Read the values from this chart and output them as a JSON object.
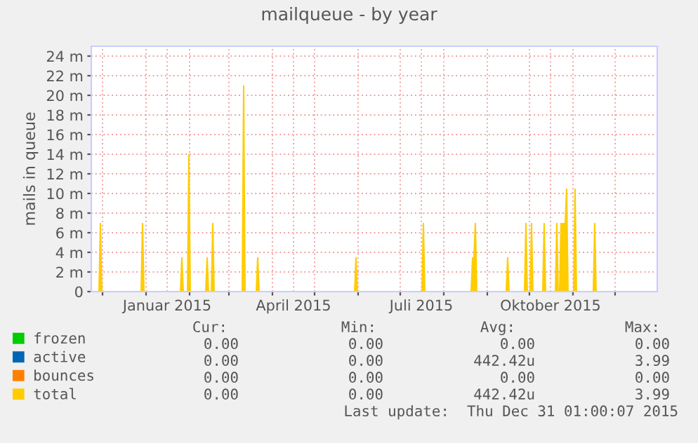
{
  "chart_data": {
    "type": "area",
    "title": "mailqueue - by year",
    "ylabel": "mails in queue",
    "xlim": [
      "2014-11-23",
      "2015-12-31T01:00"
    ],
    "xticks": [
      {
        "value": "2014-12-01",
        "label": null
      },
      {
        "value": "2015-01-01",
        "label": null
      },
      {
        "value": "2015-01-16",
        "label": "Januar 2015"
      },
      {
        "value": "2015-02-01",
        "label": null
      },
      {
        "value": "2015-03-01",
        "label": null
      },
      {
        "value": "2015-04-01",
        "label": null
      },
      {
        "value": "2015-04-16",
        "label": "April 2015"
      },
      {
        "value": "2015-05-01",
        "label": null
      },
      {
        "value": "2015-06-01",
        "label": null
      },
      {
        "value": "2015-07-01",
        "label": null
      },
      {
        "value": "2015-07-16",
        "label": "Juli 2015"
      },
      {
        "value": "2015-08-01",
        "label": null
      },
      {
        "value": "2015-09-01",
        "label": null
      },
      {
        "value": "2015-10-01",
        "label": null
      },
      {
        "value": "2015-10-16",
        "label": "Oktober 2015"
      },
      {
        "value": "2015-11-01",
        "label": null
      },
      {
        "value": "2015-12-01",
        "label": null
      }
    ],
    "ylim": [
      0,
      25
    ],
    "yticks": [
      0,
      {
        "value": 2,
        "label": "2 m"
      },
      {
        "value": 4,
        "label": "4 m"
      },
      {
        "value": 6,
        "label": "6 m"
      },
      {
        "value": 8,
        "label": "8 m"
      },
      {
        "value": 10,
        "label": "10 m"
      },
      {
        "value": 12,
        "label": "12 m"
      },
      {
        "value": 14,
        "label": "14 m"
      },
      {
        "value": 16,
        "label": "16 m"
      },
      {
        "value": 18,
        "label": "18 m"
      },
      {
        "value": 20,
        "label": "20 m"
      },
      {
        "value": 22,
        "label": "22 m"
      },
      {
        "value": 24,
        "label": "24 m"
      }
    ],
    "grid": true,
    "legend": "bottom",
    "series": [
      {
        "name": "frozen",
        "color": "#00cc00",
        "values": [
          null
        ]
      },
      {
        "name": "active",
        "color": "#0066b3",
        "values": [
          null
        ]
      },
      {
        "name": "bounces",
        "color": "#ff8000",
        "values": [
          null
        ]
      },
      {
        "name": "total",
        "color": "#ffcc00",
        "x": [
          "2014-11-23",
          "2014-11-28",
          "2014-11-29",
          "2014-11-30",
          "2014-12-01",
          "2014-12-28",
          "2014-12-29",
          "2014-12-30",
          "2014-12-31",
          "2015-01-25",
          "2015-01-26",
          "2015-01-27",
          "2015-01-28",
          "2015-01-30",
          "2015-01-31",
          "2015-02-01",
          "2015-02-02",
          "2015-02-12",
          "2015-02-13",
          "2015-02-14",
          "2015-02-15",
          "2015-02-16",
          "2015-02-17",
          "2015-02-18",
          "2015-02-19",
          "2015-03-10",
          "2015-03-11",
          "2015-03-12",
          "2015-03-13",
          "2015-03-20",
          "2015-03-21",
          "2015-03-22",
          "2015-03-23",
          "2015-05-29",
          "2015-05-30",
          "2015-05-31",
          "2015-06-01",
          "2015-07-16",
          "2015-07-17",
          "2015-07-18",
          "2015-07-19",
          "2015-08-20",
          "2015-08-21",
          "2015-08-22",
          "2015-08-23",
          "2015-08-24",
          "2015-08-25",
          "2015-09-14",
          "2015-09-15",
          "2015-09-16",
          "2015-09-17",
          "2015-09-27",
          "2015-09-28",
          "2015-09-29",
          "2015-09-30",
          "2015-10-01",
          "2015-10-02",
          "2015-10-03",
          "2015-10-04",
          "2015-10-10",
          "2015-10-11",
          "2015-10-12",
          "2015-10-13",
          "2015-10-19",
          "2015-10-20",
          "2015-10-21",
          "2015-10-22",
          "2015-10-23",
          "2015-10-24",
          "2015-10-25",
          "2015-10-26",
          "2015-10-27",
          "2015-10-28",
          "2015-10-29",
          "2015-11-01",
          "2015-11-02",
          "2015-11-03",
          "2015-11-04",
          "2015-11-15",
          "2015-11-16",
          "2015-11-17",
          "2015-11-18",
          "2015-12-31T01:00"
        ],
        "values": [
          0,
          0,
          7,
          7,
          0,
          0,
          7,
          7,
          0,
          0,
          3.5,
          3.5,
          0,
          0,
          14,
          14,
          0,
          0,
          3.5,
          3.5,
          0,
          0,
          7,
          7,
          0,
          0,
          21,
          21,
          0,
          0,
          3.5,
          3.5,
          0,
          0,
          3.5,
          3.5,
          0,
          0,
          7,
          7,
          0,
          0,
          3.5,
          3.5,
          7,
          7,
          0,
          0,
          3.5,
          3.5,
          0,
          0,
          7,
          7,
          0,
          0,
          7,
          7,
          0,
          0,
          7,
          7,
          0,
          0,
          7,
          7,
          0,
          7,
          7,
          7,
          7,
          10.5,
          10.5,
          0,
          0,
          10.5,
          10.5,
          0,
          0,
          7,
          7,
          0,
          0
        ]
      }
    ],
    "annotations": [
      "Cur:",
      "Min:",
      "Avg:",
      "Max:",
      "0.00",
      "0.00",
      "0.00",
      "0.00",
      "0.00",
      "0.00",
      "442.42u",
      "3.99",
      "0.00",
      "0.00",
      "0.00",
      "0.00",
      "0.00",
      "0.00",
      "442.42u",
      "3.99",
      "Last update:  Thu Dec 31 01:00:07 2015"
    ]
  }
}
